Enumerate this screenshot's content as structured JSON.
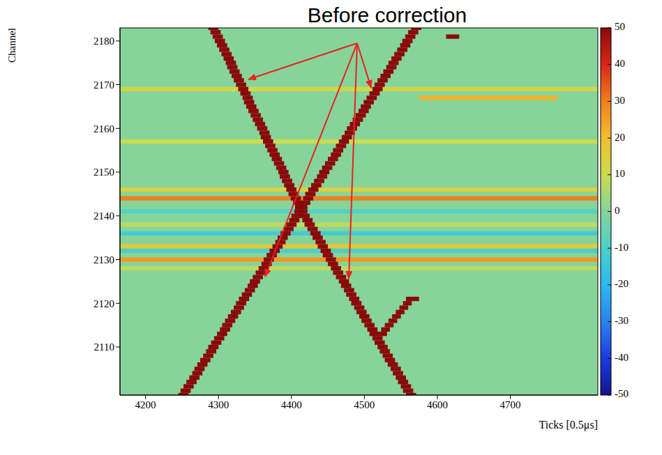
{
  "chart_data": {
    "type": "heatmap",
    "title": "Before correction",
    "x_label": "Ticks [0.5μs]",
    "y_label": "Channel",
    "xlim": [
      4165,
      4820
    ],
    "ylim": [
      2099,
      2183
    ],
    "xticks": [
      4200,
      4300,
      4400,
      4500,
      4600,
      4700
    ],
    "yticks": [
      2110,
      2120,
      2130,
      2140,
      2150,
      2160,
      2170,
      2180
    ],
    "zlim": [
      -50,
      50
    ],
    "zticks": [
      -50,
      -40,
      -30,
      -20,
      -10,
      0,
      10,
      20,
      30,
      40,
      50
    ],
    "cells": [
      [
        4165,
        4820,
        2169,
        12
      ],
      [
        4575,
        4765,
        2167,
        22
      ],
      [
        4165,
        4820,
        2157,
        10
      ],
      [
        4165,
        4820,
        2146,
        14
      ],
      [
        4165,
        4820,
        2144,
        30
      ],
      [
        4165,
        4820,
        2141,
        -8
      ],
      [
        4165,
        4820,
        2138,
        8
      ],
      [
        4165,
        4820,
        2136,
        -12
      ],
      [
        4165,
        4820,
        2133,
        18
      ],
      [
        4165,
        4820,
        2132,
        -10
      ],
      [
        4165,
        4820,
        2130,
        26
      ],
      [
        4165,
        4820,
        2128,
        8
      ],
      [
        4286,
        4300,
        2183,
        50
      ],
      [
        4289,
        4303,
        2182,
        50
      ],
      [
        4292,
        4306,
        2181,
        50
      ],
      [
        4295,
        4309,
        2180,
        50
      ],
      [
        4298,
        4312,
        2179,
        50
      ],
      [
        4301,
        4315,
        2178,
        50
      ],
      [
        4304,
        4318,
        2177,
        50
      ],
      [
        4307,
        4321,
        2176,
        50
      ],
      [
        4310,
        4324,
        2175,
        50
      ],
      [
        4312,
        4326,
        2174,
        50
      ],
      [
        4315,
        4329,
        2173,
        50
      ],
      [
        4318,
        4332,
        2172,
        50
      ],
      [
        4321,
        4335,
        2171,
        50
      ],
      [
        4324,
        4338,
        2170,
        50
      ],
      [
        4327,
        4341,
        2169,
        50
      ],
      [
        4330,
        4344,
        2168,
        50
      ],
      [
        4333,
        4347,
        2167,
        50
      ],
      [
        4335,
        4349,
        2166,
        50
      ],
      [
        4338,
        4352,
        2165,
        50
      ],
      [
        4341,
        4355,
        2164,
        50
      ],
      [
        4344,
        4358,
        2163,
        50
      ],
      [
        4347,
        4361,
        2162,
        50
      ],
      [
        4350,
        4364,
        2161,
        50
      ],
      [
        4353,
        4367,
        2160,
        50
      ],
      [
        4356,
        4370,
        2159,
        50
      ],
      [
        4358,
        4372,
        2158,
        50
      ],
      [
        4361,
        4375,
        2157,
        50
      ],
      [
        4364,
        4378,
        2156,
        50
      ],
      [
        4367,
        4381,
        2155,
        50
      ],
      [
        4370,
        4384,
        2154,
        50
      ],
      [
        4373,
        4387,
        2153,
        50
      ],
      [
        4376,
        4390,
        2152,
        50
      ],
      [
        4379,
        4393,
        2151,
        50
      ],
      [
        4382,
        4396,
        2150,
        50
      ],
      [
        4384,
        4398,
        2149,
        50
      ],
      [
        4387,
        4401,
        2148,
        50
      ],
      [
        4390,
        4404,
        2147,
        50
      ],
      [
        4393,
        4407,
        2146,
        50
      ],
      [
        4396,
        4410,
        2145,
        50
      ],
      [
        4399,
        4413,
        2144,
        50
      ],
      [
        4402,
        4416,
        2143,
        50
      ],
      [
        4405,
        4419,
        2142,
        50
      ],
      [
        4408,
        4422,
        2141,
        50
      ],
      [
        4411,
        4425,
        2140,
        50
      ],
      [
        4415,
        4429,
        2139,
        50
      ],
      [
        4418,
        4432,
        2138,
        50
      ],
      [
        4422,
        4436,
        2137,
        50
      ],
      [
        4426,
        4440,
        2136,
        50
      ],
      [
        4429,
        4443,
        2135,
        50
      ],
      [
        4433,
        4447,
        2134,
        50
      ],
      [
        4436,
        4450,
        2133,
        50
      ],
      [
        4440,
        4454,
        2132,
        50
      ],
      [
        4443,
        4457,
        2131,
        50
      ],
      [
        4447,
        4461,
        2130,
        50
      ],
      [
        4450,
        4464,
        2129,
        50
      ],
      [
        4454,
        4468,
        2128,
        50
      ],
      [
        4457,
        4471,
        2127,
        50
      ],
      [
        4461,
        4475,
        2126,
        50
      ],
      [
        4465,
        4479,
        2125,
        50
      ],
      [
        4468,
        4482,
        2124,
        50
      ],
      [
        4472,
        4486,
        2123,
        50
      ],
      [
        4475,
        4489,
        2122,
        50
      ],
      [
        4479,
        4493,
        2121,
        50
      ],
      [
        4482,
        4496,
        2120,
        50
      ],
      [
        4486,
        4500,
        2119,
        50
      ],
      [
        4489,
        4503,
        2118,
        50
      ],
      [
        4493,
        4507,
        2117,
        50
      ],
      [
        4496,
        4510,
        2116,
        50
      ],
      [
        4500,
        4514,
        2115,
        50
      ],
      [
        4504,
        4518,
        2114,
        50
      ],
      [
        4507,
        4521,
        2113,
        50
      ],
      [
        4511,
        4525,
        2112,
        50
      ],
      [
        4514,
        4528,
        2111,
        50
      ],
      [
        4518,
        4532,
        2110,
        50
      ],
      [
        4521,
        4535,
        2109,
        50
      ],
      [
        4525,
        4539,
        2108,
        50
      ],
      [
        4528,
        4542,
        2107,
        50
      ],
      [
        4532,
        4546,
        2106,
        50
      ],
      [
        4536,
        4550,
        2105,
        50
      ],
      [
        4539,
        4553,
        2104,
        50
      ],
      [
        4543,
        4557,
        2103,
        50
      ],
      [
        4546,
        4560,
        2102,
        50
      ],
      [
        4550,
        4564,
        2101,
        50
      ],
      [
        4553,
        4567,
        2100,
        50
      ],
      [
        4557,
        4571,
        2099,
        50
      ],
      [
        4519,
        4531,
        2113,
        50
      ],
      [
        4523,
        4535,
        2114,
        50
      ],
      [
        4528,
        4540,
        2115,
        50
      ],
      [
        4533,
        4545,
        2116,
        50
      ],
      [
        4538,
        4550,
        2117,
        50
      ],
      [
        4543,
        4555,
        2118,
        50
      ],
      [
        4548,
        4560,
        2119,
        50
      ],
      [
        4553,
        4565,
        2120,
        50
      ],
      [
        4557,
        4575,
        2121,
        50
      ],
      [
        4612,
        4630,
        2181,
        50
      ],
      [
        4245,
        4259,
        2099,
        50
      ],
      [
        4248,
        4262,
        2100,
        50
      ],
      [
        4252,
        4266,
        2101,
        50
      ],
      [
        4256,
        4270,
        2102,
        50
      ],
      [
        4260,
        4274,
        2103,
        50
      ],
      [
        4264,
        4278,
        2104,
        50
      ],
      [
        4267,
        4281,
        2105,
        50
      ],
      [
        4271,
        4285,
        2106,
        50
      ],
      [
        4275,
        4289,
        2107,
        50
      ],
      [
        4279,
        4293,
        2108,
        50
      ],
      [
        4283,
        4297,
        2109,
        50
      ],
      [
        4286,
        4300,
        2110,
        50
      ],
      [
        4290,
        4304,
        2111,
        50
      ],
      [
        4294,
        4308,
        2112,
        50
      ],
      [
        4298,
        4312,
        2113,
        50
      ],
      [
        4302,
        4316,
        2114,
        50
      ],
      [
        4305,
        4319,
        2115,
        50
      ],
      [
        4309,
        4323,
        2116,
        50
      ],
      [
        4313,
        4327,
        2117,
        50
      ],
      [
        4317,
        4331,
        2118,
        50
      ],
      [
        4321,
        4335,
        2119,
        50
      ],
      [
        4324,
        4338,
        2120,
        50
      ],
      [
        4328,
        4342,
        2121,
        50
      ],
      [
        4332,
        4346,
        2122,
        50
      ],
      [
        4336,
        4350,
        2123,
        50
      ],
      [
        4340,
        4354,
        2124,
        50
      ],
      [
        4343,
        4357,
        2125,
        50
      ],
      [
        4347,
        4361,
        2126,
        50
      ],
      [
        4351,
        4365,
        2127,
        50
      ],
      [
        4355,
        4369,
        2128,
        50
      ],
      [
        4359,
        4373,
        2129,
        50
      ],
      [
        4362,
        4376,
        2130,
        50
      ],
      [
        4366,
        4380,
        2131,
        50
      ],
      [
        4370,
        4384,
        2132,
        50
      ],
      [
        4374,
        4388,
        2133,
        50
      ],
      [
        4378,
        4392,
        2134,
        50
      ],
      [
        4381,
        4395,
        2135,
        50
      ],
      [
        4385,
        4399,
        2136,
        50
      ],
      [
        4389,
        4403,
        2137,
        50
      ],
      [
        4393,
        4407,
        2138,
        50
      ],
      [
        4397,
        4411,
        2139,
        50
      ],
      [
        4400,
        4414,
        2140,
        50
      ],
      [
        4404,
        4418,
        2141,
        50
      ],
      [
        4408,
        4422,
        2142,
        50
      ],
      [
        4412,
        4426,
        2143,
        50
      ],
      [
        4416,
        4430,
        2144,
        50
      ],
      [
        4419,
        4433,
        2145,
        50
      ],
      [
        4423,
        4437,
        2146,
        50
      ],
      [
        4427,
        4441,
        2147,
        50
      ],
      [
        4431,
        4445,
        2148,
        50
      ],
      [
        4435,
        4449,
        2149,
        50
      ],
      [
        4438,
        4452,
        2150,
        50
      ],
      [
        4442,
        4456,
        2151,
        50
      ],
      [
        4446,
        4460,
        2152,
        50
      ],
      [
        4450,
        4464,
        2153,
        50
      ],
      [
        4454,
        4468,
        2154,
        50
      ],
      [
        4457,
        4471,
        2155,
        50
      ],
      [
        4461,
        4475,
        2156,
        50
      ],
      [
        4465,
        4479,
        2157,
        50
      ],
      [
        4469,
        4483,
        2158,
        50
      ],
      [
        4473,
        4487,
        2159,
        50
      ],
      [
        4476,
        4490,
        2160,
        50
      ],
      [
        4480,
        4494,
        2161,
        50
      ],
      [
        4484,
        4498,
        2162,
        50
      ],
      [
        4488,
        4502,
        2163,
        50
      ],
      [
        4492,
        4506,
        2164,
        50
      ],
      [
        4495,
        4509,
        2165,
        50
      ],
      [
        4499,
        4513,
        2166,
        50
      ],
      [
        4503,
        4517,
        2167,
        50
      ],
      [
        4507,
        4521,
        2168,
        50
      ],
      [
        4511,
        4525,
        2169,
        50
      ],
      [
        4514,
        4528,
        2170,
        50
      ],
      [
        4518,
        4532,
        2171,
        50
      ],
      [
        4522,
        4536,
        2172,
        50
      ],
      [
        4526,
        4540,
        2173,
        50
      ],
      [
        4530,
        4544,
        2174,
        50
      ],
      [
        4533,
        4547,
        2175,
        50
      ],
      [
        4537,
        4551,
        2176,
        50
      ],
      [
        4541,
        4555,
        2177,
        50
      ],
      [
        4545,
        4559,
        2178,
        50
      ],
      [
        4549,
        4563,
        2179,
        50
      ],
      [
        4552,
        4566,
        2180,
        50
      ],
      [
        4556,
        4570,
        2181,
        50
      ],
      [
        4560,
        4574,
        2182,
        50
      ],
      [
        4564,
        4578,
        2183,
        50
      ]
    ]
  }
}
